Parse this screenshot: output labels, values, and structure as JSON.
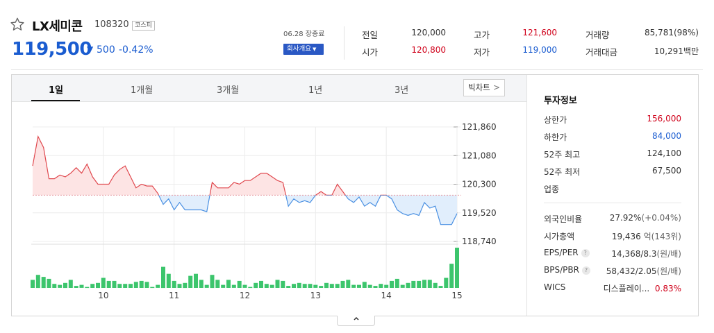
{
  "stock": {
    "name": "LX세미콘",
    "code": "108320",
    "market": "코스피",
    "price": "119,500",
    "change_arrow": "▼",
    "change_amount": "500",
    "change_pct": "-0.42%"
  },
  "header": {
    "date_label": "06.28 장종료",
    "company_button": "회사개요",
    "quotes": [
      {
        "label": "전일",
        "value": "120,000",
        "color": "#333333"
      },
      {
        "label": "시가",
        "value": "120,800",
        "color": "#d0021b"
      },
      {
        "label": "고가",
        "value": "121,600",
        "color": "#d0021b"
      },
      {
        "label": "저가",
        "value": "119,000",
        "color": "#1a5cd0"
      },
      {
        "label": "거래량",
        "value": "85,781(98%)",
        "color": "#333333"
      },
      {
        "label": "거래대금",
        "value": "10,291백만",
        "color": "#333333"
      }
    ]
  },
  "tabs": [
    "1일",
    "1개월",
    "3개월",
    "1년",
    "3년"
  ],
  "active_tab": "1일",
  "big_chart_button": "빅차트",
  "invest": {
    "title": "투자정보",
    "rows": [
      {
        "label": "상한가",
        "value": "156,000",
        "color": "red"
      },
      {
        "label": "하한가",
        "value": "84,000",
        "color": "blue"
      },
      {
        "label": "52주 최고",
        "value": "124,100",
        "color": ""
      },
      {
        "label": "52주 최저",
        "value": "67,500",
        "color": ""
      },
      {
        "label": "업종",
        "value": "",
        "color": ""
      }
    ],
    "rows2": [
      {
        "label": "외국인비율",
        "value": "27.92%",
        "sub": "(+0.04%)",
        "help": false
      },
      {
        "label": "시가총액",
        "value": "19,436",
        "sub": "억(143위)",
        "help": false
      },
      {
        "label": "EPS/PER",
        "value": "14,368/8.3",
        "sub": "(원/배)",
        "help": true
      },
      {
        "label": "BPS/PBR",
        "value": "58,432/2.05",
        "sub": "(원/배)",
        "help": true
      }
    ],
    "wics": {
      "label": "WICS",
      "sector": "디스플레이...",
      "pct": "0.83%"
    }
  },
  "icons": {
    "favorite": "star-outline-icon",
    "collapse": "chevron-up-icon"
  },
  "colors": {
    "up": "#e0484e",
    "down": "#4a90e2",
    "volume": "#3cc56c",
    "accent": "#1a5cd0"
  },
  "chart_data": {
    "type": "line",
    "title": "",
    "xlabel": "",
    "ylabel": "",
    "x_ticks": [
      "10",
      "11",
      "12",
      "13",
      "14",
      "15"
    ],
    "x_tick_index": [
      13,
      26,
      39,
      52,
      65,
      78
    ],
    "y_ticks": [
      121860,
      121080,
      120300,
      119520,
      118740
    ],
    "y_tick_labels": [
      "121,860",
      "121,080",
      "120,300",
      "119,520",
      "118,740"
    ],
    "ylim": [
      118740,
      121860
    ],
    "baseline": 120000,
    "series": [
      {
        "values": [
          120800,
          121600,
          121300,
          120450,
          120450,
          120550,
          120500,
          120600,
          120750,
          120600,
          120850,
          120500,
          120300,
          120300,
          120300,
          120550,
          120700,
          120800,
          120500,
          120200,
          120300,
          120250,
          120250,
          120050,
          119750,
          119900,
          119600,
          119800,
          119600,
          119600,
          119600,
          119600,
          119550,
          120350,
          120200,
          120200,
          120200,
          120350,
          120300,
          120400,
          120400,
          120500,
          120600,
          120600,
          120500,
          120400,
          120350,
          119700,
          119900,
          119800,
          119850,
          119800,
          120000,
          120100,
          120000,
          120000,
          120300,
          120100,
          119900,
          119800,
          119950,
          119700,
          119800,
          119700,
          120000,
          120000,
          119900,
          119600,
          119500,
          119450,
          119500,
          119450,
          119800,
          119650,
          119700,
          119200,
          119200,
          119200,
          119500
        ]
      }
    ],
    "volume": [
      8,
      13,
      11,
      9,
      4,
      3,
      5,
      8,
      2,
      3,
      1,
      4,
      5,
      10,
      7,
      7,
      4,
      4,
      4,
      6,
      7,
      6,
      1,
      3,
      21,
      14,
      7,
      4,
      5,
      12,
      14,
      8,
      3,
      13,
      8,
      3,
      8,
      3,
      7,
      3,
      1,
      5,
      7,
      4,
      3,
      8,
      7,
      2,
      4,
      5,
      4,
      4,
      3,
      2,
      5,
      4,
      4,
      7,
      8,
      3,
      3,
      6,
      3,
      2,
      4,
      3,
      7,
      9,
      3,
      5,
      7,
      7,
      8,
      8,
      5,
      2,
      10,
      24,
      40
    ]
  }
}
